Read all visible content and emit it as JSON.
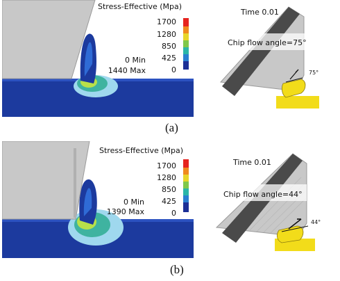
{
  "figures": [
    {
      "id": "a",
      "caption": "(a)",
      "legend_title": "Stress-Effective (Mpa)",
      "scale_labels": [
        "1700",
        "1280",
        "850",
        "425",
        "0"
      ],
      "min_text": "0 Min",
      "max_text": "1440 Max",
      "time_text": "Time 0.01",
      "chip_flow_text": "Chip flow angle=75°",
      "angle_text": "75°"
    },
    {
      "id": "b",
      "caption": "(b)",
      "legend_title": "Stress-Effective (Mpa)",
      "scale_labels": [
        "1700",
        "1280",
        "850",
        "425",
        "0"
      ],
      "min_text": "0 Min",
      "max_text": "1390 Max",
      "time_text": "Time 0.01",
      "chip_flow_text": "Chip flow angle=44°",
      "angle_text": "44°"
    }
  ],
  "colors": {
    "workpiece_blue": "#1c3a9e",
    "tool_gray": "#c8c8c8",
    "chip_yellow": "#f2dc1a",
    "dark_band": "#4a4a4a"
  }
}
